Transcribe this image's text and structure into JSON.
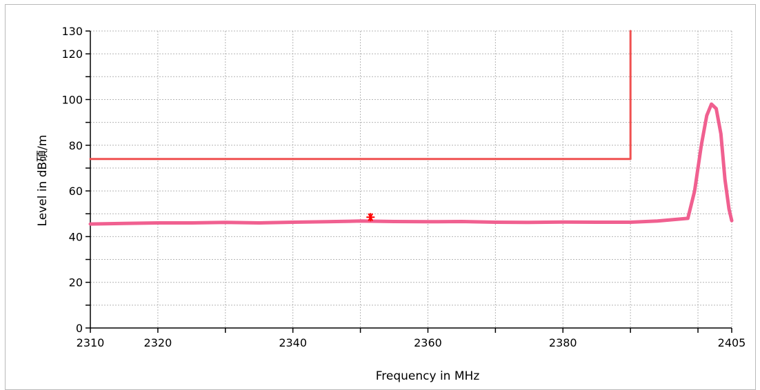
{
  "chart_data": {
    "type": "line",
    "xlabel": "Frequency in MHz",
    "ylabel": "Level in dB碩/m",
    "xlim": [
      2310,
      2405
    ],
    "ylim": [
      0,
      130
    ],
    "x_tick_labels": [
      {
        "value": 2310,
        "label": "2310"
      },
      {
        "value": 2320,
        "label": "2320"
      },
      {
        "value": 2340,
        "label": "2340"
      },
      {
        "value": 2360,
        "label": "2360"
      },
      {
        "value": 2380,
        "label": "2380"
      },
      {
        "value": 2405,
        "label": "2405"
      }
    ],
    "x_grid": [
      2310,
      2320,
      2330,
      2340,
      2350,
      2360,
      2370,
      2380,
      2390,
      2400,
      2405
    ],
    "y_tick_labels": [
      {
        "value": 0,
        "label": "0"
      },
      {
        "value": 20,
        "label": "20"
      },
      {
        "value": 40,
        "label": "40"
      },
      {
        "value": 60,
        "label": "60"
      },
      {
        "value": 80,
        "label": "80"
      },
      {
        "value": 100,
        "label": "100"
      },
      {
        "value": 120,
        "label": "120"
      },
      {
        "value": 130,
        "label": "130"
      }
    ],
    "y_grid": [
      0,
      10,
      20,
      30,
      40,
      50,
      60,
      70,
      80,
      90,
      100,
      110,
      120,
      130
    ],
    "grid": true,
    "series": [
      {
        "color": "#f06090",
        "x": [
          2310,
          2315,
          2320,
          2325,
          2330,
          2335,
          2340,
          2345,
          2350,
          2355,
          2360,
          2365,
          2370,
          2375,
          2380,
          2385,
          2390,
          2394,
          2398.5,
          2399.5,
          2400.5,
          2401.3,
          2402,
          2402.7,
          2403.4,
          2404,
          2404.6,
          2405
        ],
        "y": [
          45.5,
          45.8,
          46.0,
          46.0,
          46.2,
          46.0,
          46.3,
          46.5,
          46.8,
          46.6,
          46.5,
          46.6,
          46.3,
          46.2,
          46.4,
          46.3,
          46.3,
          46.8,
          48.0,
          60.0,
          80.0,
          93.0,
          98.0,
          96.0,
          85.0,
          65.0,
          52.0,
          47.0
        ]
      },
      {
        "color": "#f05050",
        "x": [
          2310,
          2390,
          2390
        ],
        "y": [
          74,
          74,
          130
        ]
      }
    ],
    "markers": [
      {
        "x": 2351.5,
        "y": 48.5,
        "symbol": "asterisk",
        "color": "#ff0000"
      }
    ]
  }
}
